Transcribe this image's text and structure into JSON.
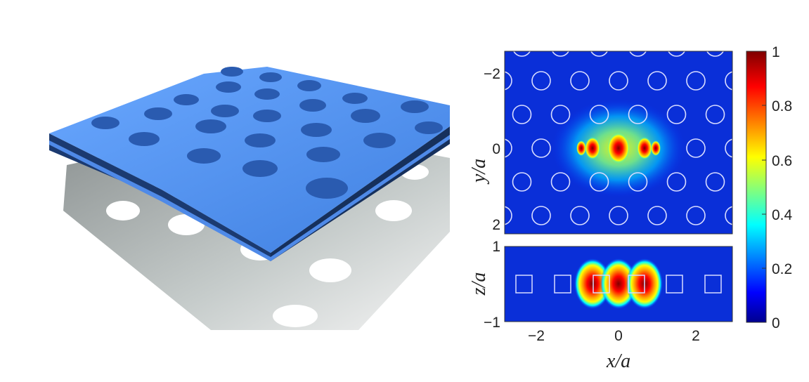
{
  "figure": {
    "left_panel": {
      "description_icon": "photonic-crystal-slab-render"
    },
    "top_map": {
      "ylabel": "y/a",
      "yticks": [
        "−2",
        "0",
        "2"
      ]
    },
    "bottom_map": {
      "ylabel": "z/a",
      "yticks": [
        "1",
        "−1"
      ],
      "xticks": [
        "−2",
        "0",
        "2"
      ],
      "xlabel": "x/a"
    },
    "colorbar": {
      "ticks": [
        "1",
        "0.8",
        "0.6",
        "0.4",
        "0.2",
        "0"
      ],
      "colors": [
        "#7f0000",
        "#ff0000",
        "#ffff00",
        "#00ffff",
        "#0000ff",
        "#00008f"
      ]
    }
  }
}
